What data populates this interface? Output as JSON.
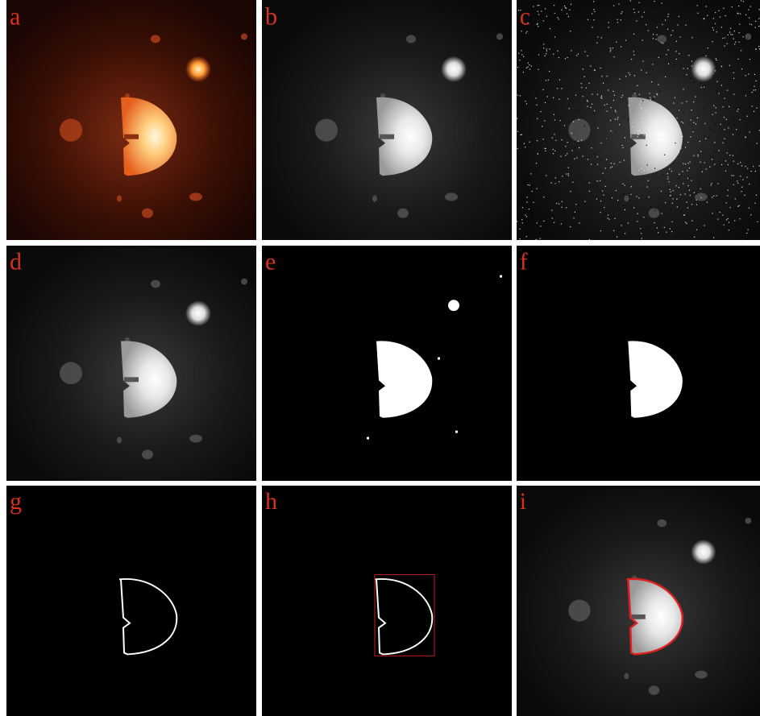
{
  "panels": [
    {
      "label": "a"
    },
    {
      "label": "b"
    },
    {
      "label": "c"
    },
    {
      "label": "d"
    },
    {
      "label": "e"
    },
    {
      "label": "f"
    },
    {
      "label": "g"
    },
    {
      "label": "h"
    },
    {
      "label": "i"
    }
  ]
}
